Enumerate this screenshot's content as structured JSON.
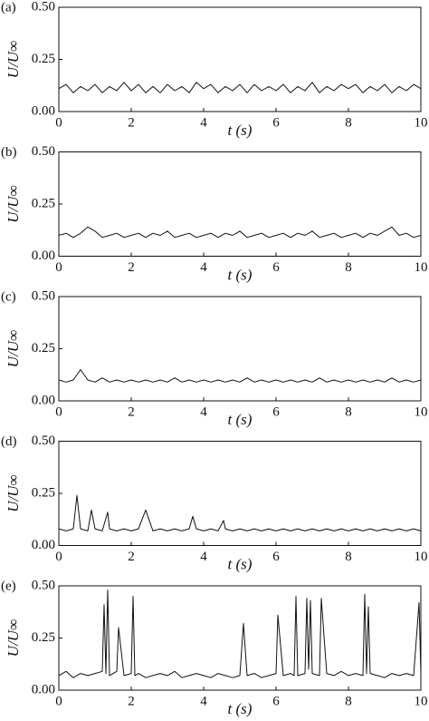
{
  "chart_data": [
    {
      "type": "line",
      "panel_label": "(a)",
      "ylabel": "U/U∞",
      "xlabel": "t (s)",
      "color": "#111111",
      "xlim": [
        0,
        10
      ],
      "xticks": [
        0,
        2,
        4,
        6,
        8,
        10
      ],
      "ylim": [
        0,
        0.5
      ],
      "yticks": [
        {
          "value": 0,
          "label": "0.00"
        },
        {
          "value": 0.25,
          "label": "0.25"
        },
        {
          "value": 0.5,
          "label": "0.50"
        }
      ],
      "x": [
        0,
        0.2,
        0.4,
        0.6,
        0.8,
        1.0,
        1.2,
        1.4,
        1.6,
        1.8,
        2.0,
        2.2,
        2.4,
        2.6,
        2.8,
        3.0,
        3.2,
        3.4,
        3.6,
        3.8,
        4.0,
        4.2,
        4.4,
        4.6,
        4.8,
        5.0,
        5.2,
        5.4,
        5.6,
        5.8,
        6.0,
        6.2,
        6.4,
        6.6,
        6.8,
        7.0,
        7.2,
        7.4,
        7.6,
        7.8,
        8.0,
        8.2,
        8.4,
        8.6,
        8.8,
        9.0,
        9.2,
        9.4,
        9.6,
        9.8,
        10.0
      ],
      "values": [
        0.11,
        0.13,
        0.09,
        0.12,
        0.1,
        0.13,
        0.09,
        0.12,
        0.1,
        0.14,
        0.1,
        0.13,
        0.09,
        0.12,
        0.09,
        0.13,
        0.1,
        0.12,
        0.09,
        0.14,
        0.11,
        0.13,
        0.09,
        0.12,
        0.1,
        0.13,
        0.09,
        0.13,
        0.1,
        0.12,
        0.1,
        0.13,
        0.09,
        0.12,
        0.1,
        0.14,
        0.09,
        0.12,
        0.1,
        0.13,
        0.11,
        0.13,
        0.09,
        0.12,
        0.1,
        0.13,
        0.09,
        0.12,
        0.1,
        0.13,
        0.11
      ]
    },
    {
      "type": "line",
      "panel_label": "(b)",
      "ylabel": "U/U∞",
      "xlabel": "t (s)",
      "color": "#111111",
      "xlim": [
        0,
        10
      ],
      "xticks": [
        0,
        2,
        4,
        6,
        8,
        10
      ],
      "ylim": [
        0,
        0.5
      ],
      "yticks": [
        {
          "value": 0,
          "label": "0.00"
        },
        {
          "value": 0.25,
          "label": "0.25"
        },
        {
          "value": 0.5,
          "label": "0.50"
        }
      ],
      "x": [
        0,
        0.2,
        0.4,
        0.6,
        0.8,
        1.0,
        1.2,
        1.4,
        1.6,
        1.8,
        2.0,
        2.2,
        2.4,
        2.6,
        2.8,
        3.0,
        3.2,
        3.4,
        3.6,
        3.8,
        4.0,
        4.2,
        4.4,
        4.6,
        4.8,
        5.0,
        5.2,
        5.4,
        5.6,
        5.8,
        6.0,
        6.2,
        6.4,
        6.6,
        6.8,
        7.0,
        7.2,
        7.4,
        7.6,
        7.8,
        8.0,
        8.2,
        8.4,
        8.6,
        8.8,
        9.0,
        9.2,
        9.4,
        9.6,
        9.8,
        10.0
      ],
      "values": [
        0.1,
        0.11,
        0.09,
        0.11,
        0.14,
        0.12,
        0.09,
        0.1,
        0.11,
        0.09,
        0.1,
        0.11,
        0.09,
        0.11,
        0.1,
        0.12,
        0.09,
        0.1,
        0.11,
        0.09,
        0.1,
        0.11,
        0.09,
        0.11,
        0.1,
        0.12,
        0.09,
        0.1,
        0.11,
        0.09,
        0.1,
        0.11,
        0.09,
        0.11,
        0.1,
        0.12,
        0.09,
        0.1,
        0.11,
        0.09,
        0.1,
        0.11,
        0.09,
        0.11,
        0.1,
        0.12,
        0.14,
        0.1,
        0.11,
        0.09,
        0.1
      ]
    },
    {
      "type": "line",
      "panel_label": "(c)",
      "ylabel": "U/U∞",
      "xlabel": "t (s)",
      "color": "#111111",
      "xlim": [
        0,
        10
      ],
      "xticks": [
        0,
        2,
        4,
        6,
        8,
        10
      ],
      "ylim": [
        0,
        0.5
      ],
      "yticks": [
        {
          "value": 0,
          "label": "0.00"
        },
        {
          "value": 0.25,
          "label": "0.25"
        },
        {
          "value": 0.5,
          "label": "0.50"
        }
      ],
      "x": [
        0,
        0.2,
        0.4,
        0.6,
        0.8,
        1.0,
        1.2,
        1.4,
        1.6,
        1.8,
        2.0,
        2.2,
        2.4,
        2.6,
        2.8,
        3.0,
        3.2,
        3.4,
        3.6,
        3.8,
        4.0,
        4.2,
        4.4,
        4.6,
        4.8,
        5.0,
        5.2,
        5.4,
        5.6,
        5.8,
        6.0,
        6.2,
        6.4,
        6.6,
        6.8,
        7.0,
        7.2,
        7.4,
        7.6,
        7.8,
        8.0,
        8.2,
        8.4,
        8.6,
        8.8,
        9.0,
        9.2,
        9.4,
        9.6,
        9.8,
        10.0
      ],
      "values": [
        0.1,
        0.09,
        0.1,
        0.15,
        0.1,
        0.09,
        0.11,
        0.09,
        0.1,
        0.09,
        0.1,
        0.09,
        0.1,
        0.09,
        0.1,
        0.09,
        0.11,
        0.09,
        0.1,
        0.09,
        0.1,
        0.09,
        0.1,
        0.09,
        0.1,
        0.09,
        0.11,
        0.09,
        0.1,
        0.09,
        0.1,
        0.09,
        0.1,
        0.09,
        0.1,
        0.09,
        0.11,
        0.09,
        0.1,
        0.09,
        0.1,
        0.09,
        0.1,
        0.09,
        0.1,
        0.09,
        0.11,
        0.09,
        0.1,
        0.09,
        0.1
      ]
    },
    {
      "type": "line",
      "panel_label": "(d)",
      "ylabel": "U/U∞",
      "xlabel": "t (s)",
      "color": "#111111",
      "xlim": [
        0,
        10
      ],
      "xticks": [
        0,
        2,
        4,
        6,
        8,
        10
      ],
      "ylim": [
        0,
        0.5
      ],
      "yticks": [
        {
          "value": 0,
          "label": "0.00"
        },
        {
          "value": 0.25,
          "label": "0.25"
        },
        {
          "value": 0.5,
          "label": "0.50"
        }
      ],
      "x": [
        0,
        0.2,
        0.4,
        0.5,
        0.6,
        0.8,
        0.9,
        1.0,
        1.2,
        1.35,
        1.4,
        1.6,
        1.8,
        2.0,
        2.2,
        2.4,
        2.6,
        2.8,
        3.0,
        3.2,
        3.4,
        3.6,
        3.7,
        3.8,
        4.0,
        4.2,
        4.4,
        4.55,
        4.6,
        4.8,
        5.0,
        5.2,
        5.4,
        5.6,
        5.8,
        6.0,
        6.2,
        6.4,
        6.6,
        6.8,
        7.0,
        7.2,
        7.4,
        7.6,
        7.8,
        8.0,
        8.2,
        8.4,
        8.6,
        8.8,
        9.0,
        9.2,
        9.4,
        9.6,
        9.8,
        10.0
      ],
      "values": [
        0.08,
        0.07,
        0.08,
        0.24,
        0.08,
        0.07,
        0.17,
        0.08,
        0.07,
        0.16,
        0.08,
        0.07,
        0.08,
        0.07,
        0.08,
        0.17,
        0.07,
        0.08,
        0.07,
        0.08,
        0.07,
        0.08,
        0.14,
        0.08,
        0.07,
        0.08,
        0.07,
        0.12,
        0.08,
        0.07,
        0.08,
        0.07,
        0.08,
        0.07,
        0.08,
        0.07,
        0.08,
        0.07,
        0.08,
        0.07,
        0.08,
        0.07,
        0.08,
        0.07,
        0.08,
        0.07,
        0.08,
        0.07,
        0.08,
        0.07,
        0.08,
        0.07,
        0.08,
        0.07,
        0.08,
        0.07
      ]
    },
    {
      "type": "line",
      "panel_label": "(e)",
      "ylabel": "U/U∞",
      "xlabel": "t (s)",
      "color": "#111111",
      "xlim": [
        0,
        10
      ],
      "xticks": [
        0,
        2,
        4,
        6,
        8,
        10
      ],
      "ylim": [
        0,
        0.5
      ],
      "yticks": [
        {
          "value": 0,
          "label": "0.00"
        },
        {
          "value": 0.25,
          "label": "0.25"
        },
        {
          "value": 0.5,
          "label": "0.50"
        }
      ],
      "x": [
        0,
        0.2,
        0.4,
        0.6,
        0.8,
        1.0,
        1.2,
        1.25,
        1.3,
        1.35,
        1.4,
        1.6,
        1.65,
        1.8,
        2.0,
        2.05,
        2.1,
        2.2,
        2.4,
        2.6,
        2.8,
        3.0,
        3.2,
        3.4,
        3.6,
        3.8,
        4.0,
        4.2,
        4.4,
        4.6,
        4.8,
        5.0,
        5.1,
        5.2,
        5.4,
        5.6,
        5.8,
        6.0,
        6.05,
        6.2,
        6.4,
        6.5,
        6.55,
        6.6,
        6.8,
        6.85,
        6.9,
        6.95,
        7.0,
        7.2,
        7.25,
        7.4,
        7.6,
        7.8,
        8.0,
        8.2,
        8.4,
        8.45,
        8.5,
        8.55,
        8.6,
        8.8,
        9.0,
        9.2,
        9.4,
        9.6,
        9.8,
        9.95,
        10.0
      ],
      "values": [
        0.07,
        0.09,
        0.06,
        0.08,
        0.07,
        0.08,
        0.09,
        0.41,
        0.08,
        0.48,
        0.07,
        0.09,
        0.3,
        0.07,
        0.08,
        0.45,
        0.07,
        0.08,
        0.06,
        0.07,
        0.08,
        0.07,
        0.09,
        0.06,
        0.07,
        0.08,
        0.07,
        0.06,
        0.08,
        0.07,
        0.06,
        0.07,
        0.32,
        0.07,
        0.08,
        0.06,
        0.07,
        0.08,
        0.36,
        0.07,
        0.08,
        0.07,
        0.45,
        0.07,
        0.08,
        0.44,
        0.1,
        0.43,
        0.08,
        0.07,
        0.44,
        0.08,
        0.07,
        0.09,
        0.07,
        0.08,
        0.07,
        0.46,
        0.08,
        0.4,
        0.08,
        0.07,
        0.06,
        0.08,
        0.07,
        0.08,
        0.07,
        0.42,
        0.08
      ]
    }
  ]
}
